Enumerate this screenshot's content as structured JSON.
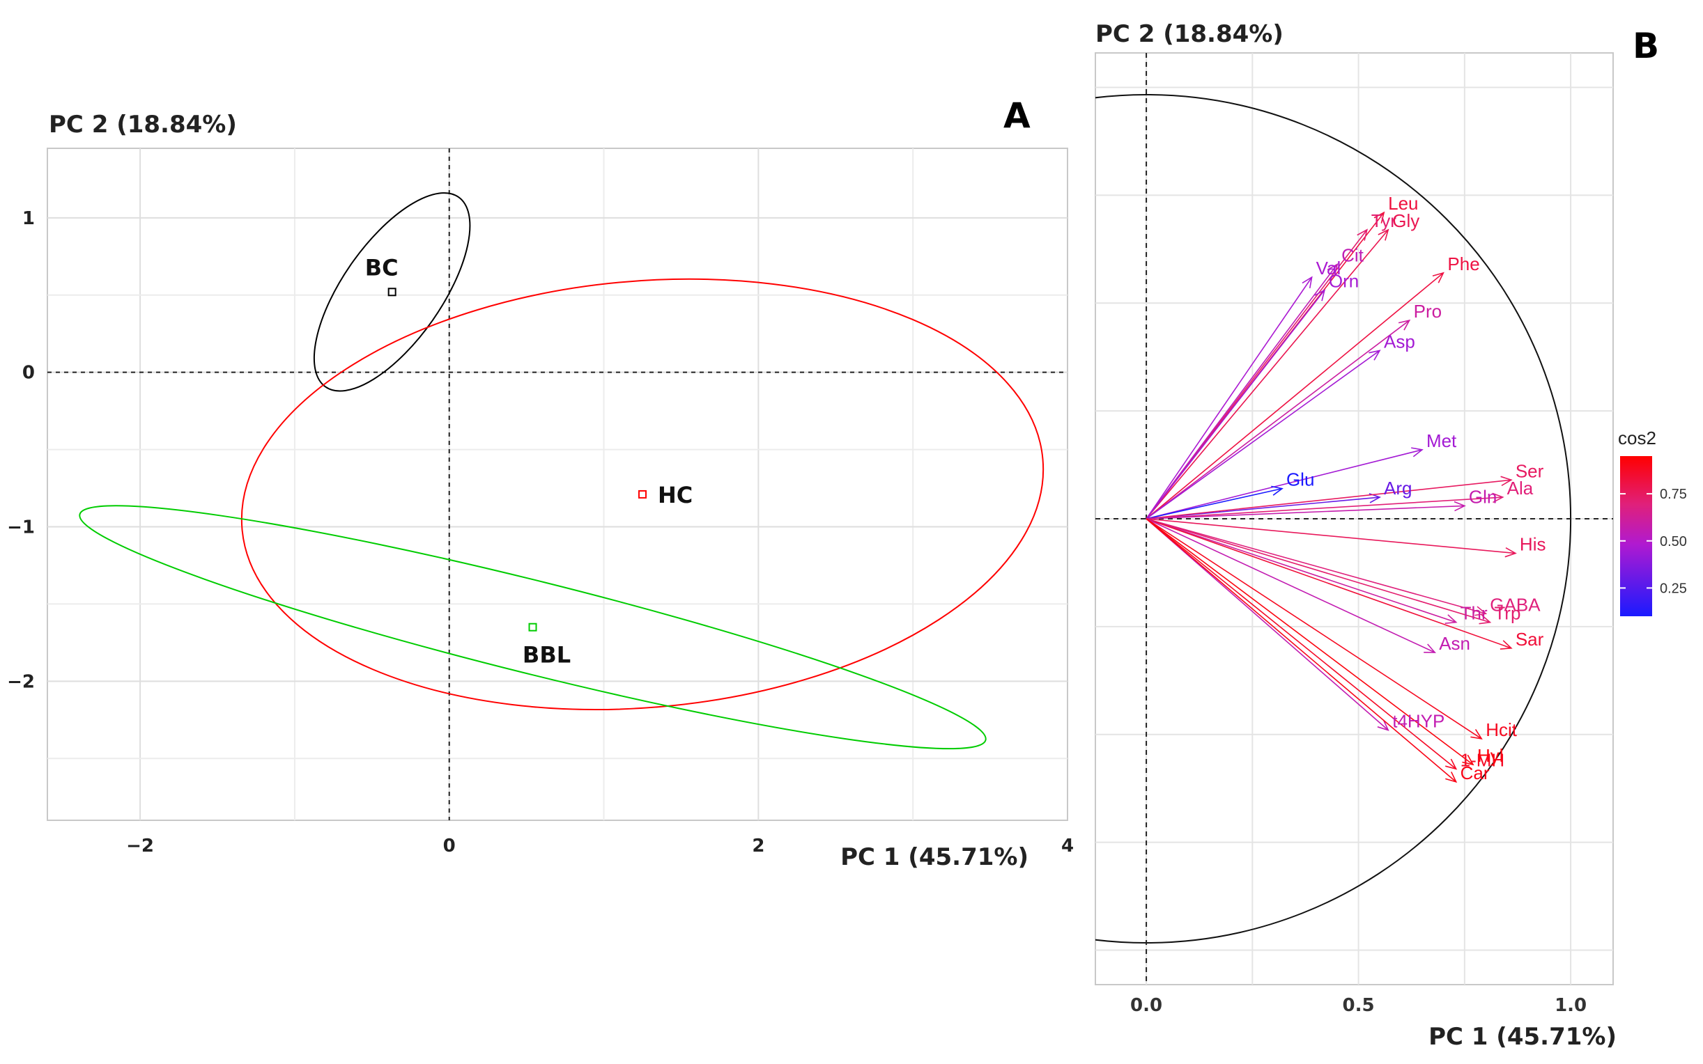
{
  "chart_data": [
    {
      "panel": "A",
      "type": "scatter",
      "title": "",
      "xlabel": "PC 1 (45.71%)",
      "ylabel": "PC 2 (18.84%)",
      "xlim": [
        -2.6,
        4.0
      ],
      "ylim": [
        -2.9,
        1.45
      ],
      "x_ticks": [
        -2,
        0,
        2,
        4
      ],
      "x_tick_labels": [
        "−2",
        "0",
        "2",
        "4"
      ],
      "y_ticks": [
        1,
        0,
        -1,
        -2
      ],
      "y_tick_labels": [
        "1",
        "0",
        "−1",
        "−2"
      ],
      "grid": true,
      "groups": [
        {
          "name": "BC",
          "label": "BC",
          "color": "#000000",
          "centroid": [
            -0.37,
            0.52
          ],
          "ellipse": {
            "center": [
              -0.37,
              0.52
            ],
            "rx": 0.75,
            "ry": 0.32,
            "angle_deg": -55
          }
        },
        {
          "name": "HC",
          "label": "HC",
          "color": "#ff0000",
          "centroid": [
            1.25,
            -0.79
          ],
          "ellipse": {
            "center": [
              1.25,
              -0.79
            ],
            "rx": 2.6,
            "ry": 1.38,
            "angle_deg": -5
          }
        },
        {
          "name": "BBL",
          "label": "BBL",
          "color": "#00cc00",
          "centroid": [
            0.54,
            -1.65
          ],
          "ellipse": {
            "center": [
              0.54,
              -1.65
            ],
            "rx": 3.02,
            "ry": 0.3,
            "angle_deg": 14
          }
        }
      ]
    },
    {
      "panel": "B",
      "type": "scatter",
      "subtype": "correlation_circle",
      "title": "",
      "xlabel": "PC 1 (45.71%)",
      "ylabel": "PC 2 (18.84%)",
      "xlim": [
        -0.12,
        1.1
      ],
      "ylim": [
        -1.08,
        1.08
      ],
      "x_ticks": [
        0.0,
        0.5,
        1.0
      ],
      "x_tick_labels": [
        "0.0",
        "0.5",
        "1.0"
      ],
      "grid": true,
      "legend": {
        "title": "cos2",
        "ticks": [
          "0.75",
          "0.50",
          "0.25"
        ],
        "tick_values": [
          0.75,
          0.5,
          0.25
        ],
        "range": [
          0.1,
          0.95
        ],
        "low_color": "#1a1aff",
        "high_color": "#ff0000",
        "placement": "right"
      },
      "variables": [
        {
          "name": "Leu",
          "x": 0.56,
          "y": 0.71,
          "cos2": 0.82
        },
        {
          "name": "Tyr",
          "x": 0.52,
          "y": 0.67,
          "cos2": 0.72
        },
        {
          "name": "Gly",
          "x": 0.57,
          "y": 0.67,
          "cos2": 0.78
        },
        {
          "name": "Val",
          "x": 0.39,
          "y": 0.56,
          "cos2": 0.47
        },
        {
          "name": "Cit",
          "x": 0.45,
          "y": 0.59,
          "cos2": 0.55
        },
        {
          "name": "Orn",
          "x": 0.42,
          "y": 0.53,
          "cos2": 0.46
        },
        {
          "name": "Phe",
          "x": 0.7,
          "y": 0.57,
          "cos2": 0.81
        },
        {
          "name": "Pro",
          "x": 0.62,
          "y": 0.46,
          "cos2": 0.6
        },
        {
          "name": "Asp",
          "x": 0.55,
          "y": 0.39,
          "cos2": 0.45
        },
        {
          "name": "Met",
          "x": 0.65,
          "y": 0.16,
          "cos2": 0.45
        },
        {
          "name": "Glu",
          "x": 0.32,
          "y": 0.07,
          "cos2": 0.1
        },
        {
          "name": "Arg",
          "x": 0.55,
          "y": 0.05,
          "cos2": 0.3
        },
        {
          "name": "Ser",
          "x": 0.86,
          "y": 0.09,
          "cos2": 0.75
        },
        {
          "name": "Ala",
          "x": 0.84,
          "y": 0.05,
          "cos2": 0.7
        },
        {
          "name": "Gln",
          "x": 0.75,
          "y": 0.03,
          "cos2": 0.57
        },
        {
          "name": "His",
          "x": 0.87,
          "y": -0.08,
          "cos2": 0.76
        },
        {
          "name": "GABA",
          "x": 0.8,
          "y": -0.22,
          "cos2": 0.69
        },
        {
          "name": "Trp",
          "x": 0.81,
          "y": -0.24,
          "cos2": 0.72
        },
        {
          "name": "Thr",
          "x": 0.73,
          "y": -0.24,
          "cos2": 0.6
        },
        {
          "name": "Sar",
          "x": 0.86,
          "y": -0.3,
          "cos2": 0.83
        },
        {
          "name": "Asn",
          "x": 0.68,
          "y": -0.31,
          "cos2": 0.56
        },
        {
          "name": "Hcit",
          "x": 0.79,
          "y": -0.51,
          "cos2": 0.88
        },
        {
          "name": "t4HYP",
          "x": 0.57,
          "y": -0.49,
          "cos2": 0.56
        },
        {
          "name": "1-MH",
          "x": 0.73,
          "y": -0.58,
          "cos2": 0.87
        },
        {
          "name": "Hyl",
          "x": 0.77,
          "y": -0.57,
          "cos2": 0.92
        },
        {
          "name": "Car",
          "x": 0.73,
          "y": -0.61,
          "cos2": 0.9
        }
      ]
    }
  ]
}
